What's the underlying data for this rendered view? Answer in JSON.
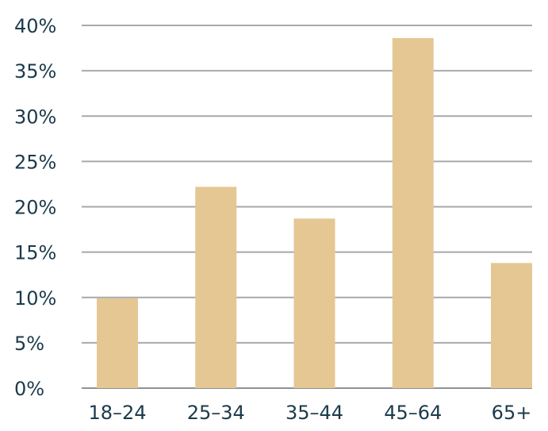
{
  "chart_data": {
    "type": "bar",
    "title": "",
    "xlabel": "",
    "ylabel": "",
    "categories": [
      "18–24",
      "25–34",
      "35–44",
      "45–64",
      "65+"
    ],
    "values": [
      9.9,
      22.2,
      18.7,
      38.6,
      13.8
    ],
    "ylim": [
      0,
      40
    ],
    "yticks": [
      0,
      5,
      10,
      15,
      20,
      25,
      30,
      35,
      40
    ],
    "ytick_labels": [
      "0%",
      "5%",
      "10%",
      "15%",
      "20%",
      "25%",
      "30%",
      "35%",
      "40%"
    ],
    "grid": true,
    "legend": "none",
    "colors": {
      "bar": "#e5c793",
      "grid": "#a7a9ac",
      "text": "#1b3a4b"
    }
  }
}
